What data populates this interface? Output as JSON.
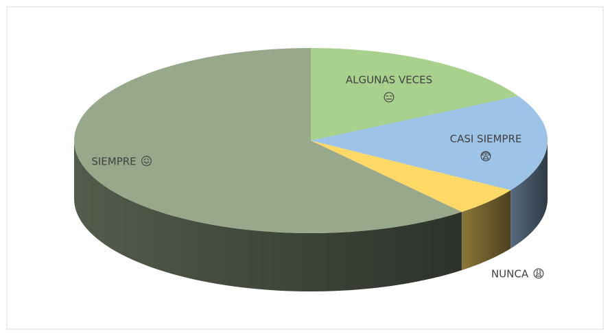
{
  "chart_data": {
    "type": "pie3d",
    "categories": [
      "ALGUNAS VECES",
      "CASI SIEMPRE",
      "NUNCA",
      "SIEMPRE"
    ],
    "label_icons": [
      "😑",
      "😨",
      "😩",
      "😖"
    ],
    "values": [
      17,
      17,
      5,
      61
    ],
    "colors": [
      "#a9d18e",
      "#9dc3e6",
      "#ffd966",
      "#97a88b"
    ]
  }
}
